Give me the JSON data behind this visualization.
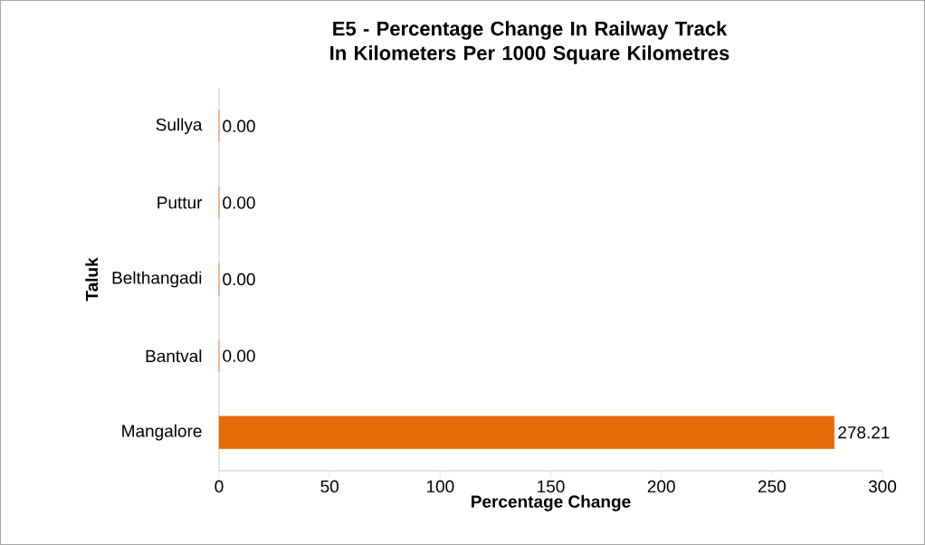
{
  "chart_data": {
    "type": "bar",
    "orientation": "horizontal",
    "title": "E5 - Percentage Change In  Railway Track In Kilometers Per 1000 Square Kilometres",
    "xlabel": "Percentage Change",
    "ylabel": "Taluk",
    "categories": [
      "Sullya",
      "Puttur",
      "Belthangadi",
      "Bantval",
      "Mangalore"
    ],
    "values": [
      0,
      0,
      0,
      0,
      278.21
    ],
    "value_labels": [
      "0.00",
      "0.00",
      "0.00",
      "0.00",
      "278.21"
    ],
    "color": "#e46c0a",
    "xlim": [
      0,
      300
    ],
    "xticks": [
      0,
      50,
      100,
      150,
      200,
      250,
      300
    ],
    "grid": false
  }
}
